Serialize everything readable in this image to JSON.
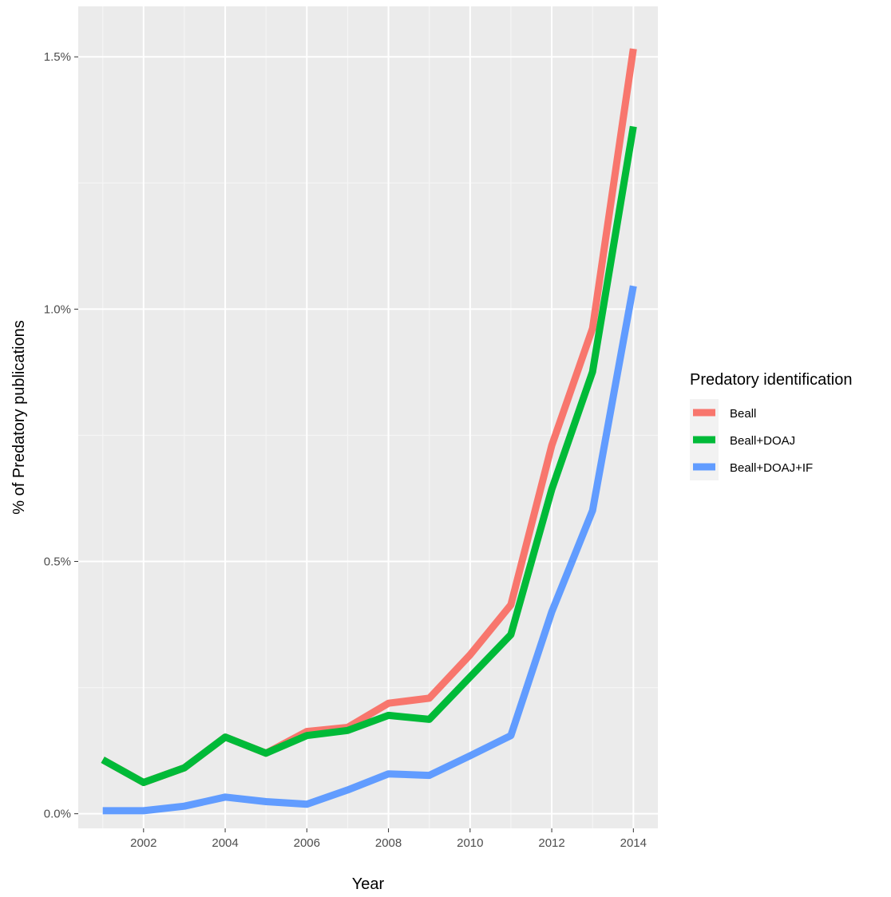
{
  "chart_data": {
    "type": "line",
    "xlabel": "Year",
    "ylabel": "% of Predatory publications",
    "x": [
      2001,
      2002,
      2003,
      2004,
      2005,
      2006,
      2007,
      2008,
      2009,
      2010,
      2011,
      2012,
      2013,
      2014
    ],
    "x_ticks": [
      "2002",
      "2004",
      "2006",
      "2008",
      "2010",
      "2012",
      "2014"
    ],
    "y_ticks": [
      "0.0%",
      "0.5%",
      "1.0%",
      "1.5%"
    ],
    "xlim": [
      2000.4,
      2014.6
    ],
    "ylim": [
      -0.029,
      1.6
    ],
    "grid": true,
    "legend": {
      "title": "Predatory identification",
      "position": "right"
    },
    "series": [
      {
        "name": "Beall",
        "color": "#F8766D",
        "values": [
          0.107,
          0.062,
          0.091,
          0.152,
          0.12,
          0.163,
          0.171,
          0.219,
          0.229,
          0.315,
          0.414,
          0.73,
          0.962,
          1.516
        ]
      },
      {
        "name": "Beall+DOAJ",
        "color": "#00BA38",
        "values": [
          0.107,
          0.062,
          0.091,
          0.152,
          0.12,
          0.155,
          0.165,
          0.195,
          0.187,
          0.271,
          0.355,
          0.643,
          0.876,
          1.362
        ]
      },
      {
        "name": "Beall+DOAJ+IF",
        "color": "#619CFF",
        "values": [
          0.006,
          0.006,
          0.015,
          0.033,
          0.024,
          0.019,
          0.047,
          0.079,
          0.076,
          0.115,
          0.155,
          0.4,
          0.601,
          1.046
        ]
      }
    ]
  }
}
